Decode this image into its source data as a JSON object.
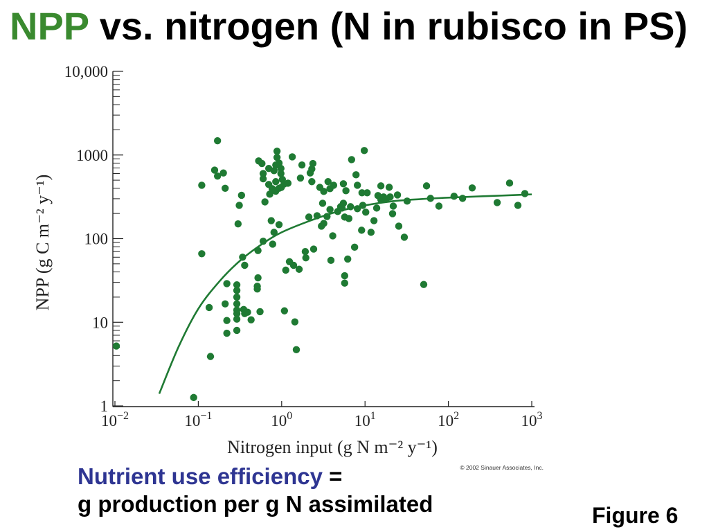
{
  "slide": {
    "title": {
      "highlight": "NPP",
      "rest": "vs. nitrogen (N in rubisco in PS)"
    },
    "note": {
      "term": "Nutrient use efficiency",
      "equals": "=",
      "definition": "g production per g N assimilated"
    },
    "figure_label": "Figure 6"
  },
  "colors": {
    "title_highlight": "#3a8a2f",
    "text": "#000000",
    "term": "#2e3592"
  },
  "chart_data": {
    "type": "scatter",
    "x_scale": "log",
    "y_scale": "log",
    "xlim": [
      0.01,
      1000
    ],
    "ylim": [
      1,
      10000
    ],
    "grid": false,
    "xlabel": "Nitrogen input (g N m⁻² y⁻¹)",
    "ylabel": "NPP (g C m⁻² y⁻¹)",
    "x_ticks": [
      {
        "value": 0.01,
        "base": "10",
        "exp": "−2"
      },
      {
        "value": 0.1,
        "base": "10",
        "exp": "−1"
      },
      {
        "value": 1,
        "base": "10",
        "exp": "0"
      },
      {
        "value": 10,
        "base": "10",
        "exp": "1"
      },
      {
        "value": 100,
        "base": "10",
        "exp": "2"
      },
      {
        "value": 1000,
        "base": "10",
        "exp": "3"
      }
    ],
    "y_ticks": [
      {
        "value": 10000,
        "label": "10,000"
      },
      {
        "value": 1000,
        "label": "1000"
      },
      {
        "value": 100,
        "label": "100"
      },
      {
        "value": 10,
        "label": "10"
      },
      {
        "value": 1,
        "label": "1"
      }
    ],
    "points": [
      [
        0.0104,
        5.2
      ],
      [
        0.088,
        1.26
      ],
      [
        0.11,
        66
      ],
      [
        0.11,
        435
      ],
      [
        0.14,
        3.9
      ],
      [
        0.135,
        15
      ],
      [
        0.157,
        660
      ],
      [
        0.17,
        1480
      ],
      [
        0.17,
        560
      ],
      [
        0.2,
        610
      ],
      [
        0.21,
        400
      ],
      [
        0.21,
        16.6
      ],
      [
        0.22,
        29
      ],
      [
        0.22,
        10.5
      ],
      [
        0.22,
        7.4
      ],
      [
        0.29,
        28
      ],
      [
        0.29,
        24
      ],
      [
        0.29,
        20
      ],
      [
        0.29,
        16.6
      ],
      [
        0.29,
        14
      ],
      [
        0.29,
        12.7
      ],
      [
        0.29,
        10.9
      ],
      [
        0.29,
        8
      ],
      [
        0.3,
        150
      ],
      [
        0.31,
        250
      ],
      [
        0.33,
        330
      ],
      [
        0.34,
        60
      ],
      [
        0.36,
        48
      ],
      [
        0.35,
        14.2
      ],
      [
        0.36,
        12.7
      ],
      [
        0.39,
        13.2
      ],
      [
        0.43,
        10.7
      ],
      [
        0.51,
        25
      ],
      [
        0.51,
        27
      ],
      [
        0.52,
        34
      ],
      [
        0.52,
        72
      ],
      [
        0.55,
        13.4
      ],
      [
        0.53,
        850
      ],
      [
        0.58,
        790
      ],
      [
        0.6,
        93
      ],
      [
        0.6,
        600
      ],
      [
        0.6,
        520
      ],
      [
        0.63,
        275
      ],
      [
        0.7,
        690
      ],
      [
        0.7,
        444
      ],
      [
        0.72,
        340
      ],
      [
        0.75,
        164
      ],
      [
        0.78,
        86
      ],
      [
        0.81,
        119
      ],
      [
        0.77,
        396
      ],
      [
        0.81,
        650
      ],
      [
        0.85,
        760
      ],
      [
        0.85,
        480
      ],
      [
        0.85,
        370
      ],
      [
        0.88,
        935
      ],
      [
        0.88,
        1110
      ],
      [
        0.93,
        800
      ],
      [
        0.93,
        400
      ],
      [
        0.93,
        147
      ],
      [
        0.98,
        690
      ],
      [
        0.98,
        600
      ],
      [
        0.99,
        410
      ],
      [
        1.02,
        510
      ],
      [
        1.07,
        450
      ],
      [
        1.12,
        42
      ],
      [
        1.08,
        13.7
      ],
      [
        1.19,
        460
      ],
      [
        1.24,
        53
      ],
      [
        1.34,
        950
      ],
      [
        1.39,
        48
      ],
      [
        1.44,
        10.1
      ],
      [
        1.5,
        4.7
      ],
      [
        1.62,
        43
      ],
      [
        1.68,
        530
      ],
      [
        1.75,
        760
      ],
      [
        1.92,
        70
      ],
      [
        1.95,
        59
      ],
      [
        2.12,
        181
      ],
      [
        2.2,
        610
      ],
      [
        2.3,
        680
      ],
      [
        2.3,
        480
      ],
      [
        2.37,
        790
      ],
      [
        2.42,
        75
      ],
      [
        2.66,
        188
      ],
      [
        2.87,
        410
      ],
      [
        3.0,
        141
      ],
      [
        3.1,
        265
      ],
      [
        3.2,
        152
      ],
      [
        3.2,
        367
      ],
      [
        3.5,
        184
      ],
      [
        3.6,
        480
      ],
      [
        3.8,
        223
      ],
      [
        3.8,
        396
      ],
      [
        3.9,
        55
      ],
      [
        4.1,
        108
      ],
      [
        4.2,
        435
      ],
      [
        4.7,
        211
      ],
      [
        5.1,
        241
      ],
      [
        5.3,
        232
      ],
      [
        5.5,
        265
      ],
      [
        5.5,
        453
      ],
      [
        5.7,
        36
      ],
      [
        5.7,
        29.4
      ],
      [
        5.7,
        181
      ],
      [
        5.9,
        374
      ],
      [
        6.2,
        57
      ],
      [
        6.4,
        174
      ],
      [
        6.7,
        241
      ],
      [
        6.9,
        880
      ],
      [
        7.5,
        79
      ],
      [
        7.8,
        580
      ],
      [
        8.1,
        435
      ],
      [
        8.1,
        228
      ],
      [
        9.1,
        126
      ],
      [
        9.2,
        353
      ],
      [
        9.4,
        250
      ],
      [
        9.8,
        1130
      ],
      [
        10.2,
        207
      ],
      [
        10.6,
        353
      ],
      [
        11.8,
        119
      ],
      [
        12.8,
        164
      ],
      [
        13.8,
        232
      ],
      [
        14.3,
        327
      ],
      [
        15.5,
        427
      ],
      [
        15.5,
        292
      ],
      [
        16.7,
        315
      ],
      [
        18,
        297
      ],
      [
        19.5,
        411
      ],
      [
        20,
        315
      ],
      [
        21.4,
        199
      ],
      [
        21.8,
        245
      ],
      [
        24.5,
        333
      ],
      [
        25.4,
        141
      ],
      [
        29.6,
        104
      ],
      [
        32,
        281
      ],
      [
        50.6,
        28.3
      ],
      [
        54.7,
        427
      ],
      [
        61,
        303
      ],
      [
        77,
        245
      ],
      [
        117,
        321
      ],
      [
        148,
        303
      ],
      [
        193,
        404
      ],
      [
        385,
        270
      ],
      [
        542,
        461
      ],
      [
        682,
        250
      ],
      [
        826,
        346
      ]
    ],
    "curve": {
      "x": [
        0.034,
        0.058,
        0.1,
        0.18,
        0.32,
        0.58,
        1,
        2.2,
        4.7,
        10,
        22,
        47,
        100,
        260,
        1000
      ],
      "y": [
        1.4,
        5.1,
        14.5,
        31,
        55,
        86,
        119,
        164,
        211,
        250,
        281,
        297,
        309,
        321,
        338
      ]
    },
    "colors": {
      "points": "#1f7a33",
      "curve": "#1f7a33",
      "axis": "#222222"
    },
    "copyright": "© 2002 Sinauer Associates, Inc."
  }
}
